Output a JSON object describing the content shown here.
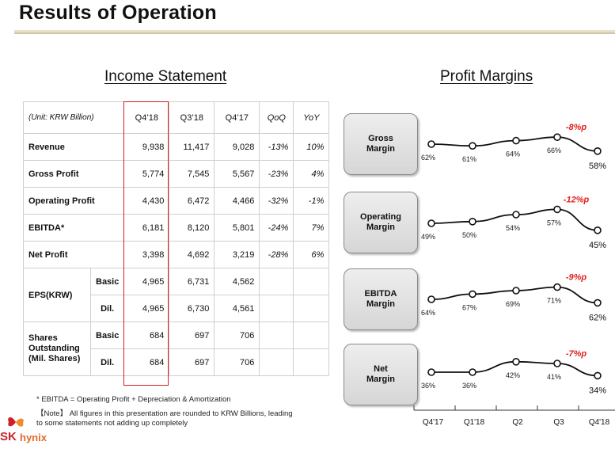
{
  "title": "Results of Operation",
  "income": {
    "heading": "Income Statement",
    "unit": "(Unit: KRW Billion)",
    "columns": [
      "Q4’18",
      "Q3’18",
      "Q4’17",
      "QoQ",
      "YoY"
    ],
    "rows": [
      {
        "label": "Revenue",
        "values": [
          "9,938",
          "11,417",
          "9,028",
          "-13%",
          "10%"
        ]
      },
      {
        "label": "Gross Profit",
        "values": [
          "5,774",
          "7,545",
          "5,567",
          "-23%",
          "4%"
        ]
      },
      {
        "label": "Operating Profit",
        "values": [
          "4,430",
          "6,472",
          "4,466",
          "-32%",
          "-1%"
        ]
      },
      {
        "label": "EBITDA*",
        "values": [
          "6,181",
          "8,120",
          "5,801",
          "-24%",
          "7%"
        ]
      },
      {
        "label": "Net Profit",
        "values": [
          "3,398",
          "4,692",
          "3,219",
          "-28%",
          "6%"
        ]
      }
    ],
    "eps": {
      "label": "EPS(KRW)",
      "basic_label": "Basic",
      "dil_label": "Dil.",
      "basic": [
        "4,965",
        "6,731",
        "4,562"
      ],
      "dil": [
        "4,965",
        "6,730",
        "4,561"
      ]
    },
    "shares": {
      "label_1": "Shares",
      "label_2": "Outstanding",
      "label_3": "(Mil. Shares)",
      "basic_label": "Basic",
      "dil_label": "Dil.",
      "basic": [
        "684",
        "697",
        "706"
      ],
      "dil": [
        "684",
        "697",
        "706"
      ]
    }
  },
  "footnotes": {
    "ebitda": "* EBITDA = Operating Profit + Depreciation & Amortization",
    "note_line1": "【Note】 All figures in this presentation are rounded to KRW Billions, leading",
    "note_line2": "to some statements not adding up completely"
  },
  "logo": {
    "sk": "SK",
    "hynix": "hynix",
    "colors": {
      "sk": "#d0202a",
      "hynix": "#e3692a"
    }
  },
  "margins": {
    "heading": "Profit Margins",
    "boxes": [
      {
        "line1": "Gross",
        "line2": "Margin"
      },
      {
        "line1": "Operating",
        "line2": "Margin"
      },
      {
        "line1": "EBITDA",
        "line2": "Margin"
      },
      {
        "line1": "Net",
        "line2": "Margin"
      }
    ],
    "change_color": "#e02020"
  },
  "chart_data": {
    "type": "line",
    "categories": [
      "Q4'17",
      "Q1'18",
      "Q2",
      "Q3",
      "Q4'18"
    ],
    "series": [
      {
        "values": [
          62,
          61,
          64,
          66,
          58
        ],
        "labels": [
          "62%",
          "61%",
          "64%",
          "66%",
          "58%"
        ],
        "change": "-8%p"
      },
      {
        "values": [
          49,
          50,
          54,
          57,
          45
        ],
        "labels": [
          "49%",
          "50%",
          "54%",
          "57%",
          "45%"
        ],
        "change": "-12%p"
      },
      {
        "values": [
          64,
          67,
          69,
          71,
          62
        ],
        "labels": [
          "64%",
          "67%",
          "69%",
          "71%",
          "62%"
        ],
        "change": "-9%p"
      },
      {
        "values": [
          36,
          36,
          42,
          41,
          34
        ],
        "labels": [
          "36%",
          "36%",
          "42%",
          "41%",
          "34%"
        ],
        "change": "-7%p"
      }
    ]
  }
}
